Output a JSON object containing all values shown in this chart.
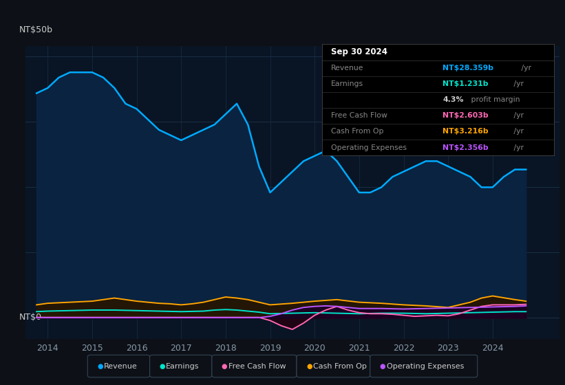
{
  "bg_color": "#0d1117",
  "plot_bg_color": "#091525",
  "grid_color": "#1a2e44",
  "y_label_top": "NT$50b",
  "y_label_bottom": "NT$0",
  "x_ticks": [
    2014,
    2015,
    2016,
    2017,
    2018,
    2019,
    2020,
    2021,
    2022,
    2023,
    2024
  ],
  "revenue_x": [
    2013.75,
    2014.0,
    2014.25,
    2014.5,
    2014.75,
    2015.0,
    2015.25,
    2015.5,
    2015.75,
    2016.0,
    2016.25,
    2016.5,
    2016.75,
    2017.0,
    2017.25,
    2017.5,
    2017.75,
    2018.0,
    2018.25,
    2018.5,
    2018.75,
    2019.0,
    2019.25,
    2019.5,
    2019.75,
    2020.0,
    2020.25,
    2020.5,
    2020.75,
    2021.0,
    2021.25,
    2021.5,
    2021.75,
    2022.0,
    2022.25,
    2022.5,
    2022.75,
    2023.0,
    2023.25,
    2023.5,
    2023.75,
    2024.0,
    2024.25,
    2024.5,
    2024.75
  ],
  "revenue_y": [
    43,
    44,
    46,
    47,
    47,
    47,
    46,
    44,
    41,
    40,
    38,
    36,
    35,
    34,
    35,
    36,
    37,
    39,
    41,
    37,
    29,
    24,
    26,
    28,
    30,
    31,
    32,
    30,
    27,
    24,
    24,
    25,
    27,
    28,
    29,
    30,
    30,
    29,
    28,
    27,
    25,
    25,
    27,
    28.4,
    28.4
  ],
  "earnings_x": [
    2013.75,
    2014.0,
    2014.5,
    2015.0,
    2015.5,
    2016.0,
    2016.5,
    2017.0,
    2017.5,
    2017.75,
    2018.0,
    2018.25,
    2018.5,
    2018.75,
    2019.0,
    2019.5,
    2020.0,
    2020.5,
    2021.0,
    2021.5,
    2022.0,
    2022.5,
    2023.0,
    2023.5,
    2024.0,
    2024.5,
    2024.75
  ],
  "earnings_y": [
    1.2,
    1.3,
    1.4,
    1.5,
    1.5,
    1.4,
    1.3,
    1.2,
    1.3,
    1.5,
    1.6,
    1.5,
    1.3,
    1.1,
    0.8,
    0.9,
    1.0,
    0.9,
    0.8,
    0.9,
    0.9,
    0.8,
    0.9,
    1.0,
    1.1,
    1.2,
    1.2
  ],
  "fcf_x": [
    2013.75,
    2014.0,
    2014.5,
    2015.0,
    2015.5,
    2016.0,
    2016.5,
    2017.0,
    2017.5,
    2018.0,
    2018.5,
    2018.75,
    2019.0,
    2019.25,
    2019.5,
    2019.75,
    2020.0,
    2020.25,
    2020.5,
    2020.75,
    2021.0,
    2021.25,
    2021.5,
    2021.75,
    2022.0,
    2022.25,
    2022.5,
    2022.75,
    2023.0,
    2023.25,
    2023.5,
    2023.75,
    2024.0,
    2024.5,
    2024.75
  ],
  "fcf_y": [
    0.1,
    0.1,
    0.1,
    0.1,
    0.1,
    0.1,
    0.1,
    0.1,
    0.1,
    0.1,
    0.1,
    0.1,
    -0.5,
    -1.5,
    -2.2,
    -1.0,
    0.5,
    1.5,
    2.2,
    1.5,
    1.0,
    0.8,
    0.8,
    0.7,
    0.5,
    0.3,
    0.4,
    0.5,
    0.4,
    0.8,
    1.5,
    2.2,
    2.5,
    2.5,
    2.6
  ],
  "cop_x": [
    2013.75,
    2014.0,
    2014.5,
    2015.0,
    2015.25,
    2015.5,
    2015.75,
    2016.0,
    2016.25,
    2016.5,
    2016.75,
    2017.0,
    2017.25,
    2017.5,
    2017.75,
    2018.0,
    2018.25,
    2018.5,
    2018.75,
    2019.0,
    2019.5,
    2020.0,
    2020.5,
    2021.0,
    2021.5,
    2022.0,
    2022.5,
    2023.0,
    2023.25,
    2023.5,
    2023.75,
    2024.0,
    2024.5,
    2024.75
  ],
  "cop_y": [
    2.5,
    2.8,
    3.0,
    3.2,
    3.5,
    3.8,
    3.5,
    3.2,
    3.0,
    2.8,
    2.7,
    2.5,
    2.7,
    3.0,
    3.5,
    4.0,
    3.8,
    3.5,
    3.0,
    2.5,
    2.8,
    3.2,
    3.5,
    3.0,
    2.8,
    2.5,
    2.3,
    2.0,
    2.5,
    3.0,
    3.8,
    4.2,
    3.5,
    3.2
  ],
  "opex_x": [
    2013.75,
    2014.0,
    2014.5,
    2015.0,
    2015.5,
    2016.0,
    2016.5,
    2017.0,
    2017.5,
    2018.0,
    2018.5,
    2018.75,
    2019.0,
    2019.25,
    2019.5,
    2019.75,
    2020.0,
    2020.25,
    2020.5,
    2020.75,
    2021.0,
    2021.5,
    2022.0,
    2022.5,
    2023.0,
    2023.5,
    2024.0,
    2024.5,
    2024.75
  ],
  "opex_y": [
    0.05,
    0.05,
    0.05,
    0.05,
    0.05,
    0.05,
    0.05,
    0.05,
    0.05,
    0.05,
    0.05,
    0.05,
    0.3,
    0.8,
    1.5,
    2.0,
    2.2,
    2.3,
    2.2,
    2.0,
    1.8,
    1.8,
    1.7,
    1.8,
    1.9,
    2.0,
    2.1,
    2.2,
    2.3
  ],
  "revenue_color": "#00aaff",
  "revenue_fill": "#0a2340",
  "earnings_color": "#00e5cc",
  "earnings_fill": "#003830",
  "fcf_color": "#ff69b4",
  "fcf_fill": "#280010",
  "cop_color": "#ffa500",
  "cop_fill": "#281500",
  "opex_color": "#bb55ff",
  "opex_fill": "#1a0028",
  "ylim": [
    -4,
    52
  ],
  "xlim": [
    2013.5,
    2025.5
  ],
  "legend_items": [
    {
      "label": "Revenue",
      "color": "#00aaff"
    },
    {
      "label": "Earnings",
      "color": "#00e5cc"
    },
    {
      "label": "Free Cash Flow",
      "color": "#ff69b4"
    },
    {
      "label": "Cash From Op",
      "color": "#ffa500"
    },
    {
      "label": "Operating Expenses",
      "color": "#bb55ff"
    }
  ],
  "infobox_title": "Sep 30 2024",
  "infobox_rows": [
    {
      "label": "Revenue",
      "value": "NT$28.359b /yr",
      "color": "#00aaff"
    },
    {
      "label": "Earnings",
      "value": "NT$1.231b /yr",
      "color": "#00e5cc"
    },
    {
      "label": "",
      "value": "4.3% profit margin",
      "color": "#cccccc",
      "bold_prefix": "4.3%"
    },
    {
      "label": "Free Cash Flow",
      "value": "NT$2.603b /yr",
      "color": "#ff69b4"
    },
    {
      "label": "Cash From Op",
      "value": "NT$3.216b /yr",
      "color": "#ffa500"
    },
    {
      "label": "Operating Expenses",
      "value": "NT$2.356b /yr",
      "color": "#bb55ff"
    }
  ]
}
